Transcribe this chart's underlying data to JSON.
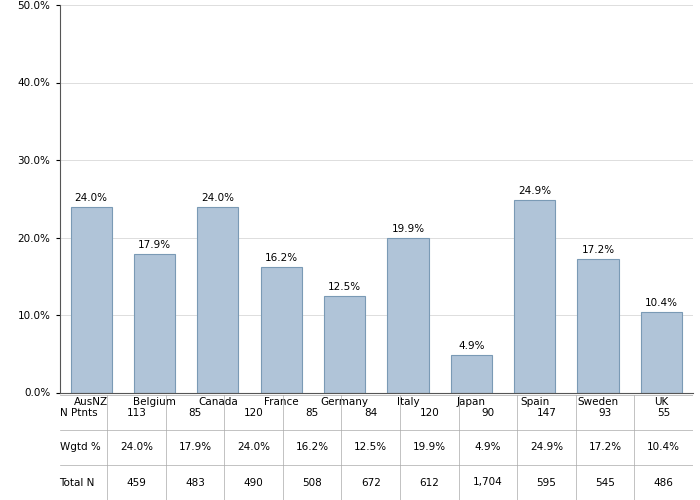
{
  "categories": [
    "AusNZ",
    "Belgium",
    "Canada",
    "France",
    "Germany",
    "Italy",
    "Japan",
    "Spain",
    "Sweden",
    "UK"
  ],
  "values": [
    24.0,
    17.9,
    24.0,
    16.2,
    12.5,
    19.9,
    4.9,
    24.9,
    17.2,
    10.4
  ],
  "bar_color": "#b0c4d8",
  "bar_edge_color": "#7a9ab5",
  "ylim": [
    0,
    50
  ],
  "yticks": [
    0,
    10,
    20,
    30,
    40,
    50
  ],
  "ytick_labels": [
    "0.0%",
    "10.0%",
    "20.0%",
    "30.0%",
    "40.0%",
    "50.0%"
  ],
  "n_ptnts": [
    "113",
    "85",
    "120",
    "85",
    "84",
    "120",
    "90",
    "147",
    "93",
    "55"
  ],
  "wgtd_pct": [
    "24.0%",
    "17.9%",
    "24.0%",
    "16.2%",
    "12.5%",
    "19.9%",
    "4.9%",
    "24.9%",
    "17.2%",
    "10.4%"
  ],
  "total_n": [
    "459",
    "483",
    "490",
    "508",
    "672",
    "612",
    "1,704",
    "595",
    "545",
    "486"
  ],
  "bar_labels": [
    "24.0%",
    "17.9%",
    "24.0%",
    "16.2%",
    "12.5%",
    "19.9%",
    "4.9%",
    "24.9%",
    "17.2%",
    "10.4%"
  ],
  "table_row_labels": [
    "N Ptnts",
    "Wgtd %",
    "Total N"
  ],
  "figsize": [
    7.0,
    5.0
  ],
  "dpi": 100,
  "background_color": "#ffffff",
  "font_size_ticks": 7.5,
  "font_size_table": 7.5,
  "bar_label_fontsize": 7.5
}
